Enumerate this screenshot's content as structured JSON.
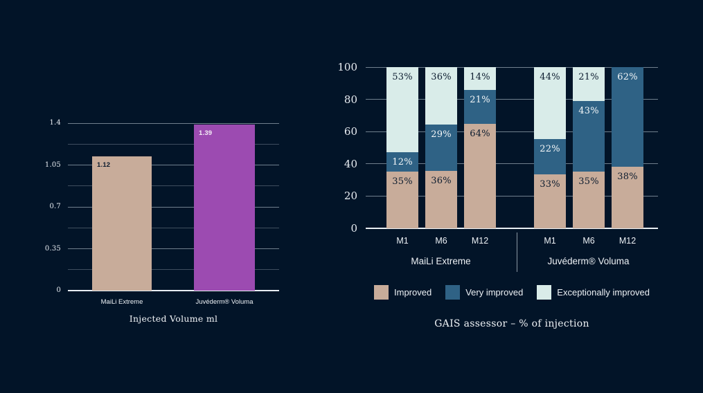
{
  "page": {
    "background": "#021428",
    "text_light": "#edf1f5",
    "text_dark": "#0b1b2e"
  },
  "chart_data": [
    {
      "type": "bar",
      "title": "Injected Volume ml",
      "categories": [
        "MaiLi Extreme",
        "Juvéderm® Voluma"
      ],
      "values": [
        1.12,
        1.39
      ],
      "value_labels": [
        "1.12",
        "1.39"
      ],
      "bar_colors": [
        "#c8ac9a",
        "#9c4bb1"
      ],
      "value_label_colors": [
        "#0b1b2e",
        "#f4eef7"
      ],
      "ylim": [
        0,
        1.4
      ],
      "yticks": [
        0,
        0.35,
        0.7,
        1.05,
        1.4
      ],
      "ytick_labels": [
        "0",
        "0.35",
        "0.7",
        "1.05",
        "1.4"
      ],
      "minor_grid_step": 0.175,
      "grid": "horizontal",
      "legend_position": "none"
    },
    {
      "type": "stacked-bar",
      "title": "GAIS assessor – % of injection",
      "group_labels": [
        "MaiLi Extreme",
        "Juvéderm® Voluma"
      ],
      "categories": [
        "M1",
        "M6",
        "M12",
        "M1",
        "M6",
        "M12"
      ],
      "series": [
        {
          "name": "Improved",
          "color": "#c8ac9a",
          "label_color": "#0b1b2e",
          "values": [
            35,
            36,
            64,
            33,
            35,
            38
          ]
        },
        {
          "name": "Very improved",
          "color": "#2f6285",
          "label_color": "#f4f7f8",
          "values": [
            12,
            29,
            21,
            22,
            43,
            62
          ]
        },
        {
          "name": "Exceptionally improved",
          "color": "#d9ece9",
          "label_color": "#0b1b2e",
          "values": [
            53,
            36,
            14,
            44,
            21,
            0
          ]
        }
      ],
      "ylim": [
        0,
        100
      ],
      "yticks": [
        0,
        20,
        40,
        60,
        80,
        100
      ],
      "ytick_labels": [
        "0",
        "20",
        "40",
        "60",
        "80",
        "100"
      ],
      "grid": "horizontal",
      "legend_position": "bottom"
    }
  ]
}
